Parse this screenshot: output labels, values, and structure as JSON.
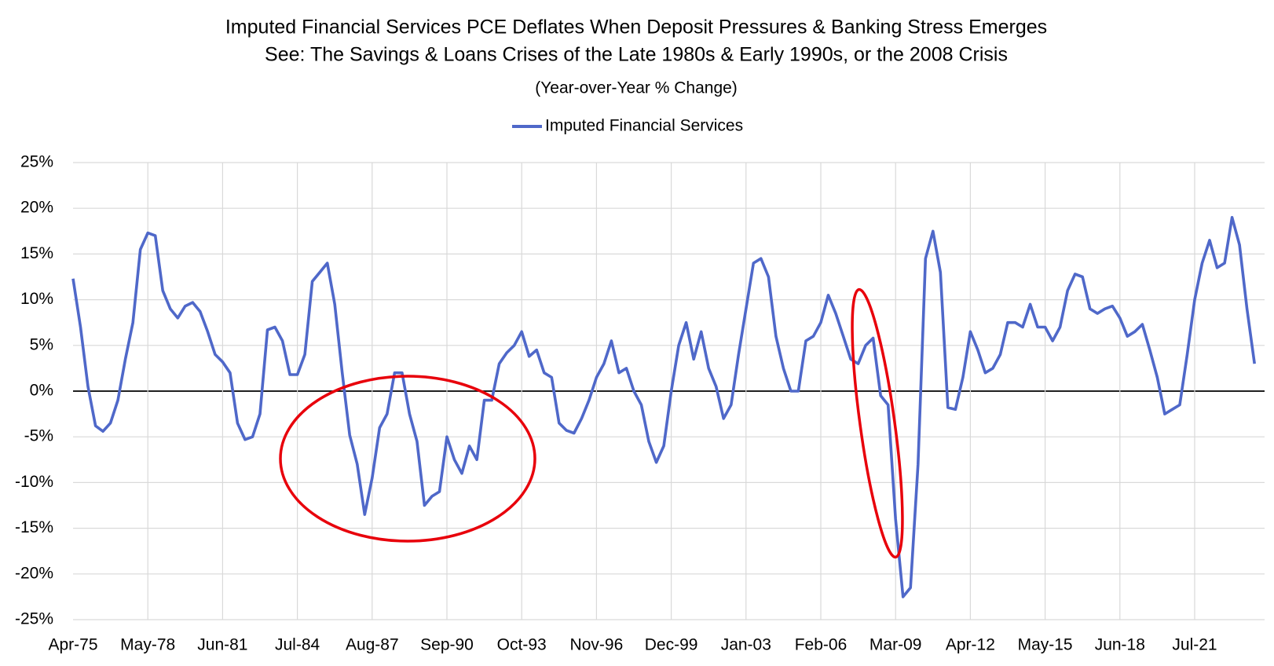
{
  "chart_data": {
    "type": "line",
    "title": "Imputed Financial Services PCE  Deflates When Deposit Pressures & Banking Stress Emerges",
    "subtitle": "See: The Savings & Loans Crises of the Late 1980s & Early 1990s, or the 2008 Crisis",
    "y_axis_label": "(Year-over-Year % Change)",
    "categories": [
      "Apr-75",
      null,
      null,
      null,
      null,
      null,
      null,
      null,
      null,
      null,
      "May-78",
      null,
      null,
      null,
      null,
      null,
      null,
      null,
      null,
      null,
      "Jun-81",
      null,
      null,
      null,
      null,
      null,
      null,
      null,
      null,
      null,
      "Jul-84",
      null,
      null,
      null,
      null,
      null,
      null,
      null,
      null,
      null,
      "Aug-87",
      null,
      null,
      null,
      null,
      null,
      null,
      null,
      null,
      null,
      "Sep-90",
      null,
      null,
      null,
      null,
      null,
      null,
      null,
      null,
      null,
      "Oct-93",
      null,
      null,
      null,
      null,
      null,
      null,
      null,
      null,
      null,
      "Nov-96",
      null,
      null,
      null,
      null,
      null,
      null,
      null,
      null,
      null,
      "Dec-99",
      null,
      null,
      null,
      null,
      null,
      null,
      null,
      null,
      null,
      "Jan-03",
      null,
      null,
      null,
      null,
      null,
      null,
      null,
      null,
      null,
      "Feb-06",
      null,
      null,
      null,
      null,
      null,
      null,
      null,
      null,
      null,
      "Mar-09",
      null,
      null,
      null,
      null,
      null,
      null,
      null,
      null,
      null,
      "Apr-12",
      null,
      null,
      null,
      null,
      null,
      null,
      null,
      null,
      null,
      "May-15",
      null,
      null,
      null,
      null,
      null,
      null,
      null,
      null,
      null,
      "Jun-18",
      null,
      null,
      null,
      null,
      null,
      null,
      null,
      null,
      null,
      "Jul-21",
      null,
      null,
      null,
      null,
      null,
      null,
      null,
      null
    ],
    "series": [
      {
        "name": "Imputed Financial Services",
        "color": "#4f68c9",
        "values": [
          12.3,
          7,
          0.5,
          -3.8,
          -4.4,
          -3.5,
          -1,
          3.5,
          7.5,
          15.5,
          17.3,
          17,
          11,
          9,
          8,
          9.3,
          9.7,
          8.7,
          6.5,
          4,
          3.2,
          2,
          -3.5,
          -5.3,
          -5,
          -2.5,
          6.7,
          7,
          5.5,
          1.8,
          1.8,
          4,
          12,
          13,
          14,
          9.5,
          2,
          -4.8,
          -8,
          -13.5,
          -9.5,
          -4,
          -2.5,
          2,
          2,
          -2.5,
          -5.5,
          -12.5,
          -11.5,
          -11,
          -5,
          -7.5,
          -9,
          -6,
          -7.5,
          -1,
          -1,
          3,
          4.2,
          5,
          6.5,
          3.8,
          4.5,
          2,
          1.5,
          -3.5,
          -4.3,
          -4.6,
          -3,
          -1,
          1.5,
          3,
          5.5,
          2,
          2.5,
          0,
          -1.5,
          -5.5,
          -7.8,
          -6,
          0,
          5,
          7.5,
          3.5,
          6.5,
          2.5,
          0.5,
          -3,
          -1.5,
          4,
          9,
          14,
          14.5,
          12.5,
          6,
          2.5,
          0,
          0,
          5.5,
          6,
          7.5,
          10.5,
          8.5,
          6,
          3.5,
          3,
          5,
          5.8,
          -0.5,
          -1.5,
          -14,
          -22.5,
          -21.5,
          -8,
          14.5,
          17.5,
          13,
          -1.8,
          -2,
          1.5,
          6.5,
          4.5,
          2,
          2.5,
          4,
          7.5,
          7.5,
          7,
          9.5,
          7,
          7,
          5.5,
          7,
          11,
          12.8,
          12.5,
          9,
          8.5,
          9,
          9.3,
          8,
          6,
          6.5,
          7.3,
          4.5,
          1.5,
          -2.5,
          -2,
          -1.5,
          4,
          10,
          14,
          16.5,
          13.5,
          14,
          19,
          16,
          9,
          3
        ]
      }
    ],
    "ylim": [
      -25,
      25
    ],
    "yticks": [
      {
        "value": -25,
        "label": "-25%"
      },
      {
        "value": -20,
        "label": "-20%"
      },
      {
        "value": -15,
        "label": "-15%"
      },
      {
        "value": -10,
        "label": "-10%"
      },
      {
        "value": -5,
        "label": "-5%"
      },
      {
        "value": 0,
        "label": "0%"
      },
      {
        "value": 5,
        "label": "5%"
      },
      {
        "value": 10,
        "label": "10%"
      },
      {
        "value": 15,
        "label": "15%"
      },
      {
        "value": 20,
        "label": "20%"
      },
      {
        "value": 25,
        "label": "25%"
      }
    ],
    "grid": true,
    "legend": "top"
  }
}
